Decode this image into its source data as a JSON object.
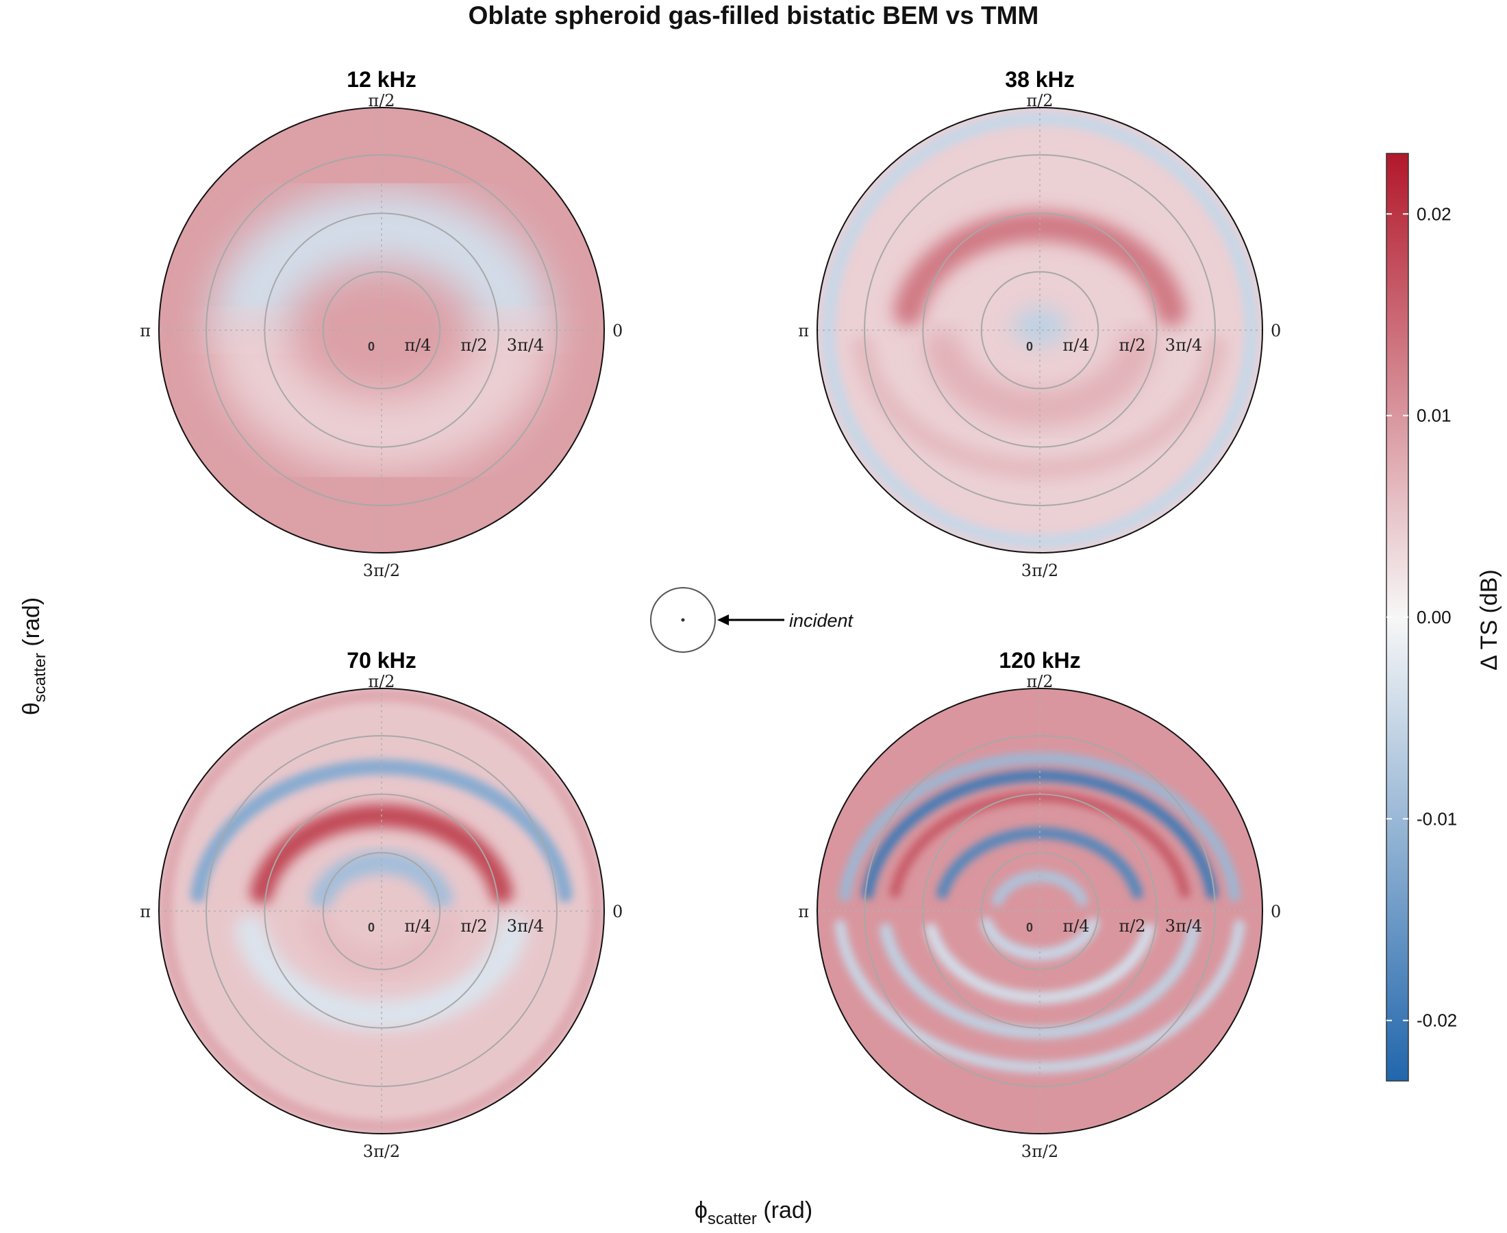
{
  "title": "Oblate spheroid gas-filled bistatic BEM vs TMM",
  "xlabel": {
    "symbol": "ϕ",
    "subscript": "scatter",
    "unit": "(rad)"
  },
  "ylabel": {
    "symbol": "θ",
    "subscript": "scatter",
    "unit": "(rad)"
  },
  "incident_label": "incident",
  "colorbar": {
    "title": "Δ TS (dB)",
    "ticks": [
      "0.02",
      "0.01",
      "0.00",
      "-0.01",
      "-0.02"
    ],
    "tick_values": [
      0.02,
      0.01,
      0.0,
      -0.01,
      -0.02
    ],
    "range": [
      -0.023,
      0.023
    ],
    "colors": {
      "neg": "#2166ac",
      "mid": "#f7f7f7",
      "pos": "#b2182b"
    }
  },
  "chart_data": {
    "type": "heatmap",
    "projection": "polar",
    "radial_axis": {
      "ticks": [
        "0",
        "π/4",
        "π/2",
        "3π/4"
      ],
      "range_rad": [
        0,
        1.5708
      ]
    },
    "angular_axis": {
      "ticks": [
        "0",
        "π/2",
        "π",
        "3π/2"
      ]
    },
    "value_range_db": [
      -0.023,
      0.023
    ],
    "panels": [
      {
        "title": "12 kHz",
        "base_db": 0.009,
        "bands_db": [
          {
            "value": -0.004,
            "ring_from_center": 0.6,
            "direction": "top",
            "fuzz": 0.5
          },
          {
            "value": 0.004,
            "ring_from_center": 0.6,
            "direction": "bottom",
            "fuzz": 0.5
          }
        ]
      },
      {
        "title": "38 kHz",
        "base_db": 0.004,
        "bands_db": [
          {
            "value": -0.005,
            "ring_from_center": 0.95,
            "direction": "all",
            "fuzz": 0.1
          },
          {
            "value": 0.013,
            "ring_from_center": 0.6,
            "direction": "top",
            "fuzz": 0.2
          },
          {
            "value": -0.006,
            "ring_from_center": 0.05,
            "direction": "center",
            "fuzz": 0.25
          },
          {
            "value": 0.007,
            "ring_from_center": 0.45,
            "direction": "bottom",
            "fuzz": 0.25
          },
          {
            "value": 0.006,
            "ring_from_center": 0.8,
            "direction": "bottom",
            "fuzz": 0.15
          }
        ]
      },
      {
        "title": "70 kHz",
        "base_db": 0.005,
        "bands_db": [
          {
            "value": 0.008,
            "ring_from_center": 0.97,
            "direction": "all",
            "fuzz": 0.05
          },
          {
            "value": -0.012,
            "ring_from_center": 0.83,
            "direction": "top",
            "fuzz": 0.1
          },
          {
            "value": 0.018,
            "ring_from_center": 0.55,
            "direction": "top",
            "fuzz": 0.15
          },
          {
            "value": -0.009,
            "ring_from_center": 0.28,
            "direction": "top",
            "fuzz": 0.15
          },
          {
            "value": 0.006,
            "ring_from_center": 0.3,
            "direction": "bottom",
            "fuzz": 0.2
          },
          {
            "value": -0.003,
            "ring_from_center": 0.6,
            "direction": "bottom",
            "fuzz": 0.2
          }
        ]
      },
      {
        "title": "120 kHz",
        "base_db": 0.01,
        "bands_db": [
          {
            "value": -0.01,
            "ring_from_center": 0.88,
            "direction": "top",
            "fuzz": 0.06
          },
          {
            "value": -0.02,
            "ring_from_center": 0.78,
            "direction": "top",
            "fuzz": 0.06
          },
          {
            "value": 0.016,
            "ring_from_center": 0.66,
            "direction": "top",
            "fuzz": 0.06
          },
          {
            "value": -0.018,
            "ring_from_center": 0.45,
            "direction": "top",
            "fuzz": 0.06
          },
          {
            "value": -0.008,
            "ring_from_center": 0.2,
            "direction": "top",
            "fuzz": 0.06
          },
          {
            "value": -0.005,
            "ring_from_center": 0.25,
            "direction": "bottom",
            "fuzz": 0.08
          },
          {
            "value": -0.004,
            "ring_from_center": 0.5,
            "direction": "bottom",
            "fuzz": 0.08
          },
          {
            "value": -0.006,
            "ring_from_center": 0.7,
            "direction": "bottom",
            "fuzz": 0.08
          },
          {
            "value": -0.005,
            "ring_from_center": 0.9,
            "direction": "bottom",
            "fuzz": 0.06
          }
        ]
      }
    ]
  }
}
